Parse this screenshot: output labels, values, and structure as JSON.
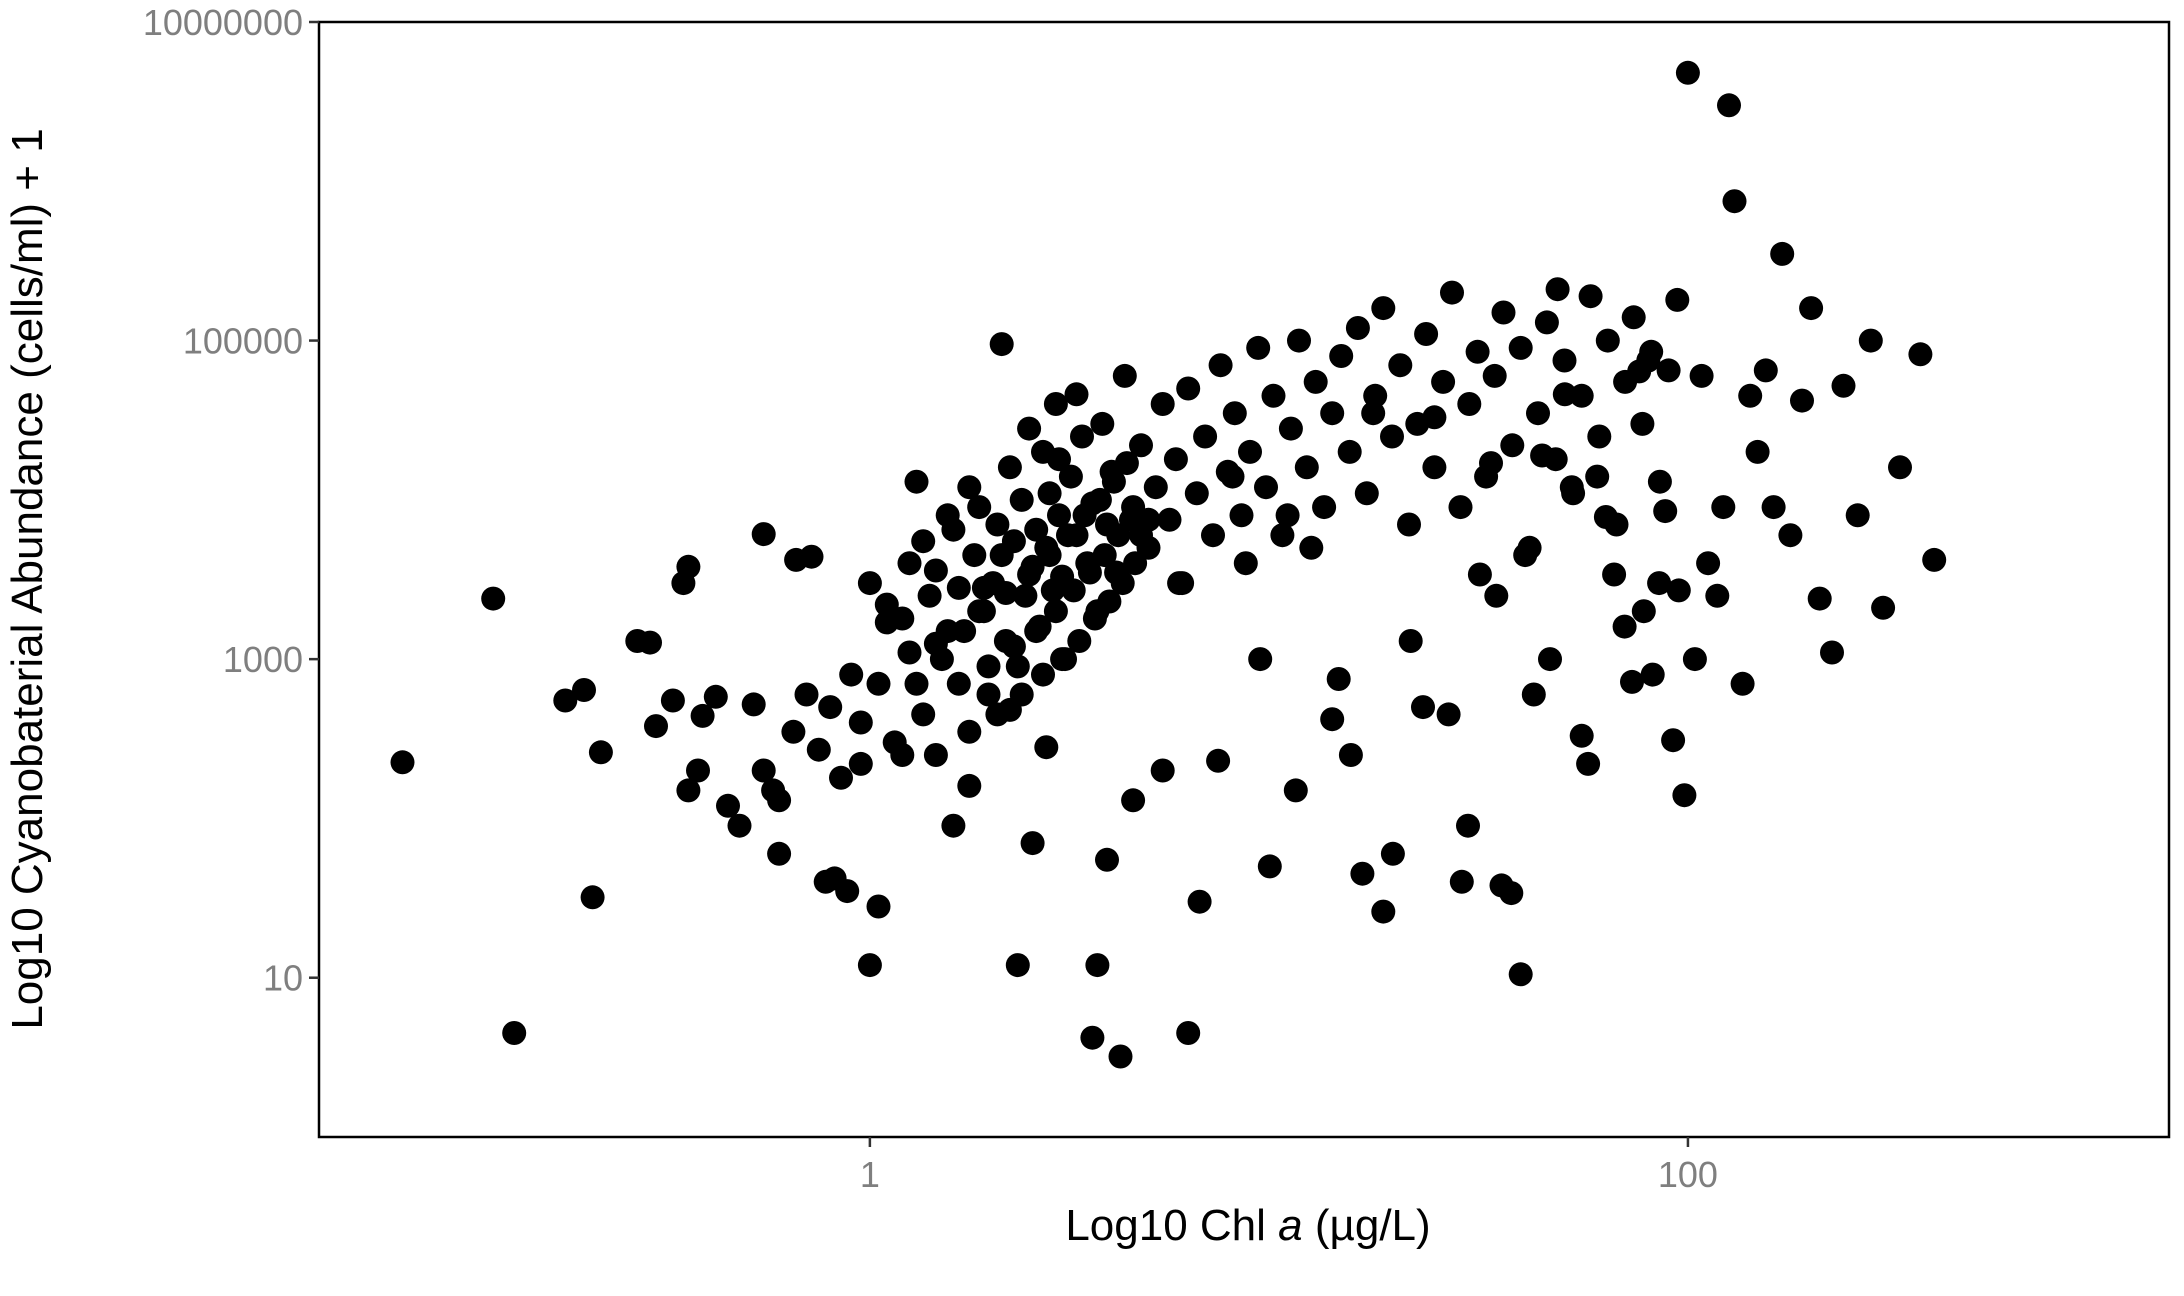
{
  "chart_data": {
    "type": "scatter",
    "title": "",
    "xlabel": "Log10 Chl a (µg/L)",
    "xlabel_parts": {
      "prefix": "Log10 Chl ",
      "italic": "a",
      "suffix": " (µg/L)"
    },
    "ylabel": "Log10 Cyanobaterial Abundance (cells/ml) + 1",
    "x_scale": "log10",
    "y_scale": "log10",
    "xlim": [
      0.045,
      1500
    ],
    "ylim": [
      1,
      10000000
    ],
    "x_ticks": [
      {
        "value": 1,
        "label": "1"
      },
      {
        "value": 100,
        "label": "100"
      }
    ],
    "y_ticks": [
      {
        "value": 10,
        "label": "10"
      },
      {
        "value": 1000,
        "label": "1000"
      },
      {
        "value": 100000,
        "label": "100000"
      },
      {
        "value": 10000000,
        "label": "10000000"
      }
    ],
    "grid": false,
    "legend": "none",
    "point_color": "#000000",
    "points": [
      [
        0.072,
        225
      ],
      [
        0.12,
        2400
      ],
      [
        0.135,
        4.5
      ],
      [
        0.18,
        550
      ],
      [
        0.2,
        640
      ],
      [
        0.21,
        32
      ],
      [
        0.22,
        260
      ],
      [
        0.27,
        1300
      ],
      [
        0.29,
        1270
      ],
      [
        0.3,
        380
      ],
      [
        0.33,
        550
      ],
      [
        0.35,
        3000
      ],
      [
        0.36,
        3800
      ],
      [
        0.36,
        150
      ],
      [
        0.38,
        200
      ],
      [
        0.39,
        440
      ],
      [
        0.42,
        580
      ],
      [
        0.45,
        120
      ],
      [
        0.48,
        90
      ],
      [
        0.52,
        520
      ],
      [
        0.55,
        6100
      ],
      [
        0.58,
        150
      ],
      [
        0.6,
        60
      ],
      [
        0.66,
        4200
      ],
      [
        0.72,
        4400
      ],
      [
        0.78,
        40
      ],
      [
        0.82,
        42
      ],
      [
        0.88,
        35
      ],
      [
        0.95,
        220
      ],
      [
        1.0,
        12
      ],
      [
        1.05,
        28
      ],
      [
        1.1,
        1700
      ],
      [
        1.2,
        250
      ],
      [
        1.3,
        13000
      ],
      [
        1.45,
        1250
      ],
      [
        1.6,
        90
      ],
      [
        1.75,
        160
      ],
      [
        1.9,
        2800
      ],
      [
        2.1,
        95000
      ],
      [
        2.2,
        480
      ],
      [
        2.3,
        12
      ],
      [
        2.5,
        70
      ],
      [
        2.7,
        280
      ],
      [
        2.9,
        18000
      ],
      [
        3.2,
        46000
      ],
      [
        3.5,
        4.2
      ],
      [
        3.6,
        12
      ],
      [
        3.8,
        55
      ],
      [
        4.1,
        3.2
      ],
      [
        4.4,
        130
      ],
      [
        4.6,
        6000
      ],
      [
        4.8,
        7500
      ],
      [
        5.2,
        200
      ],
      [
        5.7,
        3000
      ],
      [
        6.0,
        4.5
      ],
      [
        6.4,
        30
      ],
      [
        7.1,
        230
      ],
      [
        7.7,
        14000
      ],
      [
        8.3,
        4000
      ],
      [
        9.0,
        1000
      ],
      [
        9.5,
        50
      ],
      [
        10.5,
        8000
      ],
      [
        11.0,
        150
      ],
      [
        12.0,
        5000
      ],
      [
        13.5,
        420
      ],
      [
        14.0,
        750
      ],
      [
        15.0,
        250
      ],
      [
        16.0,
        45
      ],
      [
        17.0,
        35000
      ],
      [
        18.0,
        26
      ],
      [
        19.0,
        60
      ],
      [
        21.0,
        1300
      ],
      [
        22.5,
        500
      ],
      [
        24.0,
        33000
      ],
      [
        26.0,
        450
      ],
      [
        28.0,
        40
      ],
      [
        29.0,
        90
      ],
      [
        31.0,
        3400
      ],
      [
        33.0,
        17000
      ],
      [
        34.0,
        2500
      ],
      [
        35.0,
        38
      ],
      [
        37.0,
        34
      ],
      [
        39.0,
        10.5
      ],
      [
        40.0,
        4500
      ],
      [
        42.0,
        600
      ],
      [
        44.0,
        19000
      ],
      [
        46.0,
        1000
      ],
      [
        48.0,
        210000
      ],
      [
        50.0,
        46000
      ],
      [
        52.0,
        12000
      ],
      [
        55.0,
        330
      ],
      [
        57.0,
        220
      ],
      [
        60.0,
        14000
      ],
      [
        63.0,
        7800
      ],
      [
        66.0,
        3400
      ],
      [
        70.0,
        1600
      ],
      [
        73.0,
        720
      ],
      [
        76.0,
        64000
      ],
      [
        78.0,
        2000
      ],
      [
        80.0,
        75000
      ],
      [
        82.0,
        800
      ],
      [
        85.0,
        3000
      ],
      [
        88.0,
        8500
      ],
      [
        92.0,
        310
      ],
      [
        95.0,
        2700
      ],
      [
        98.0,
        140
      ],
      [
        100.0,
        4800000
      ],
      [
        104.0,
        1000
      ],
      [
        108.0,
        60000
      ],
      [
        112.0,
        4000
      ],
      [
        118.0,
        2500
      ],
      [
        122.0,
        9000
      ],
      [
        126.0,
        3000000
      ],
      [
        130.0,
        750000
      ],
      [
        136.0,
        700
      ],
      [
        142.0,
        45000
      ],
      [
        148.0,
        20000
      ],
      [
        155.0,
        65000
      ],
      [
        162.0,
        9000
      ],
      [
        170.0,
        350000
      ],
      [
        178.0,
        6000
      ],
      [
        190.0,
        42000
      ],
      [
        200.0,
        160000
      ],
      [
        210.0,
        2400
      ],
      [
        225.0,
        1100
      ],
      [
        240.0,
        52000
      ],
      [
        260.0,
        8000
      ],
      [
        280.0,
        100000
      ],
      [
        300.0,
        2100
      ],
      [
        330.0,
        16000
      ],
      [
        370.0,
        82000
      ],
      [
        400.0,
        4200
      ],
      [
        1.0,
        3000
      ],
      [
        1.1,
        2200
      ],
      [
        1.2,
        1800
      ],
      [
        1.25,
        4000
      ],
      [
        1.3,
        700
      ],
      [
        1.35,
        5500
      ],
      [
        1.4,
        2500
      ],
      [
        1.45,
        3600
      ],
      [
        1.5,
        1000
      ],
      [
        1.55,
        8000
      ],
      [
        1.6,
        6500
      ],
      [
        1.65,
        2800
      ],
      [
        1.7,
        1500
      ],
      [
        1.75,
        12000
      ],
      [
        1.8,
        4500
      ],
      [
        1.85,
        9000
      ],
      [
        1.9,
        2000
      ],
      [
        1.95,
        600
      ],
      [
        2.0,
        3000
      ],
      [
        2.05,
        7000
      ],
      [
        2.1,
        4500
      ],
      [
        2.15,
        1300
      ],
      [
        2.2,
        16000
      ],
      [
        2.25,
        5500
      ],
      [
        2.3,
        900
      ],
      [
        2.35,
        10000
      ],
      [
        2.4,
        2500
      ],
      [
        2.45,
        28000
      ],
      [
        2.5,
        3800
      ],
      [
        2.55,
        6500
      ],
      [
        2.6,
        1600
      ],
      [
        2.65,
        20000
      ],
      [
        2.7,
        5000
      ],
      [
        2.75,
        11000
      ],
      [
        2.8,
        2700
      ],
      [
        2.85,
        40000
      ],
      [
        2.9,
        8000
      ],
      [
        2.95,
        3300
      ],
      [
        3.0,
        1000
      ],
      [
        3.1,
        14000
      ],
      [
        3.2,
        6000
      ],
      [
        3.3,
        25000
      ],
      [
        3.4,
        4000
      ],
      [
        3.5,
        9500
      ],
      [
        3.6,
        2000
      ],
      [
        3.7,
        30000
      ],
      [
        3.8,
        7000
      ],
      [
        3.9,
        15000
      ],
      [
        4.0,
        3500
      ],
      [
        4.2,
        60000
      ],
      [
        4.4,
        9000
      ],
      [
        4.6,
        22000
      ],
      [
        4.8,
        5000
      ],
      [
        5.0,
        12000
      ],
      [
        5.2,
        40000
      ],
      [
        5.4,
        7500
      ],
      [
        5.6,
        18000
      ],
      [
        5.8,
        3000
      ],
      [
        6.0,
        50000
      ],
      [
        6.3,
        11000
      ],
      [
        6.6,
        25000
      ],
      [
        6.9,
        6000
      ],
      [
        7.2,
        70000
      ],
      [
        7.5,
        15000
      ],
      [
        7.8,
        35000
      ],
      [
        8.1,
        8000
      ],
      [
        8.5,
        20000
      ],
      [
        8.9,
        90000
      ],
      [
        9.3,
        12000
      ],
      [
        9.7,
        45000
      ],
      [
        10.2,
        6000
      ],
      [
        10.7,
        28000
      ],
      [
        11.2,
        100000
      ],
      [
        11.7,
        16000
      ],
      [
        12.3,
        55000
      ],
      [
        12.9,
        9000
      ],
      [
        13.5,
        35000
      ],
      [
        14.2,
        80000
      ],
      [
        14.9,
        20000
      ],
      [
        15.6,
        120000
      ],
      [
        16.4,
        11000
      ],
      [
        17.2,
        45000
      ],
      [
        18.0,
        160000
      ],
      [
        18.9,
        25000
      ],
      [
        19.8,
        70000
      ],
      [
        20.8,
        7000
      ],
      [
        21.8,
        30000
      ],
      [
        22.9,
        110000
      ],
      [
        24.0,
        16000
      ],
      [
        25.2,
        55000
      ],
      [
        26.5,
        200000
      ],
      [
        27.8,
        9000
      ],
      [
        29.2,
        40000
      ],
      [
        30.6,
        85000
      ],
      [
        32.1,
        14000
      ],
      [
        33.7,
        60000
      ],
      [
        35.4,
        150000
      ],
      [
        37.2,
        22000
      ],
      [
        39.0,
        90000
      ],
      [
        41.0,
        5000
      ],
      [
        43.0,
        35000
      ],
      [
        45.2,
        130000
      ],
      [
        47.5,
        18000
      ],
      [
        49.9,
        75000
      ],
      [
        52.4,
        11000
      ],
      [
        55.0,
        45000
      ],
      [
        57.8,
        190000
      ],
      [
        60.7,
        25000
      ],
      [
        63.7,
        100000
      ],
      [
        66.9,
        7000
      ],
      [
        70.2,
        55000
      ],
      [
        73.7,
        140000
      ],
      [
        77.4,
        30000
      ],
      [
        81.3,
        85000
      ],
      [
        85.4,
        13000
      ],
      [
        89.7,
        65000
      ],
      [
        94.2,
        180000
      ],
      [
        0.55,
        200
      ],
      [
        0.6,
        130
      ],
      [
        0.65,
        350
      ],
      [
        0.7,
        600
      ],
      [
        0.75,
        270
      ],
      [
        0.8,
        500
      ],
      [
        0.85,
        180
      ],
      [
        0.9,
        800
      ],
      [
        0.95,
        400
      ],
      [
        1.05,
        700
      ],
      [
        1.15,
        300
      ],
      [
        1.25,
        1100
      ],
      [
        1.35,
        450
      ],
      [
        1.45,
        250
      ],
      [
        1.55,
        1500
      ],
      [
        1.65,
        700
      ],
      [
        1.75,
        350
      ],
      [
        1.85,
        2000
      ],
      [
        1.95,
        900
      ],
      [
        2.05,
        450
      ],
      [
        2.15,
        2600
      ],
      [
        2.25,
        1200
      ],
      [
        2.35,
        600
      ],
      [
        2.45,
        3400
      ],
      [
        2.55,
        1500
      ],
      [
        2.65,
        800
      ],
      [
        2.75,
        4500
      ],
      [
        2.85,
        2000
      ],
      [
        2.95,
        1000
      ],
      [
        3.05,
        6000
      ],
      [
        3.15,
        2700
      ],
      [
        3.25,
        1300
      ],
      [
        3.35,
        8000
      ],
      [
        3.45,
        3500
      ],
      [
        3.55,
        1800
      ],
      [
        3.65,
        10000
      ],
      [
        3.75,
        4500
      ],
      [
        3.85,
        2300
      ],
      [
        3.95,
        13000
      ],
      [
        4.05,
        6000
      ],
      [
        4.15,
        3000
      ],
      [
        4.25,
        17000
      ],
      [
        4.35,
        7500
      ],
      [
        4.45,
        4000
      ]
    ]
  }
}
